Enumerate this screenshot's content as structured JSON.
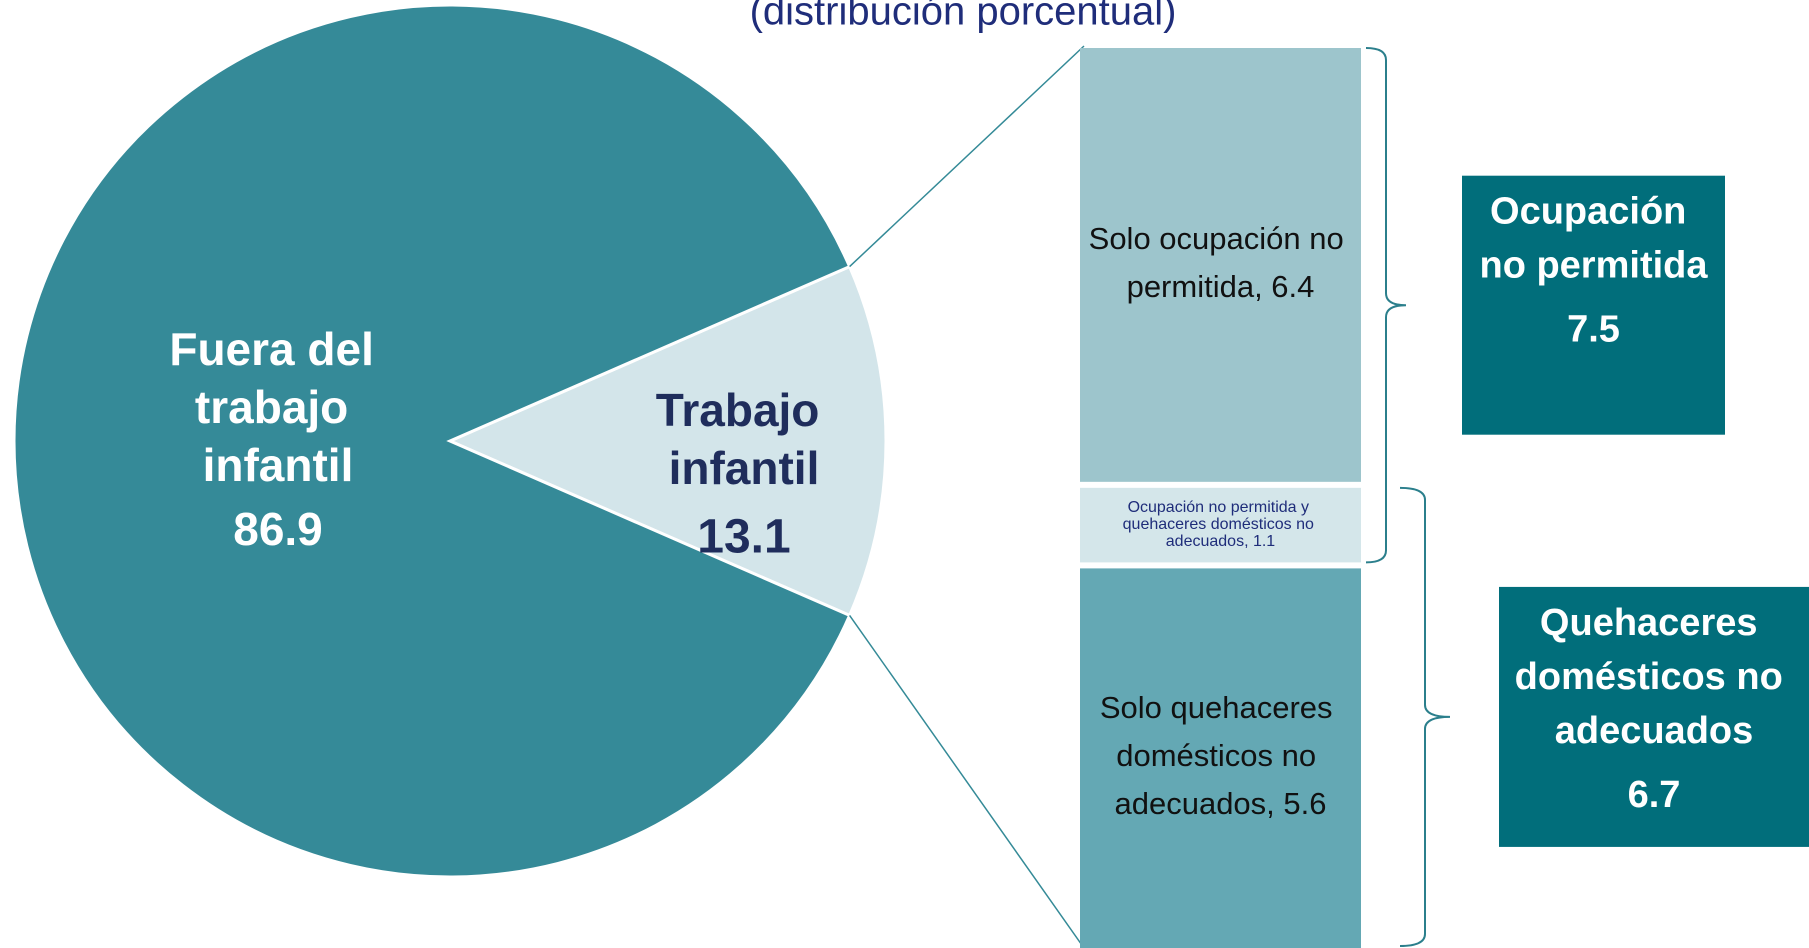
{
  "chart_data": {
    "type": "pie",
    "subtitle": "(distribución porcentual)",
    "categories": [
      "Fuera del trabajo infantil",
      "Trabajo infantil"
    ],
    "values": [
      86.9,
      13.1
    ],
    "colors": [
      "#358a98",
      "#d3e5ea"
    ],
    "breakdown": {
      "categories": [
        "Solo ocupación no permitida",
        "Ocupación no permitida y quehaceres domésticos no adecuados",
        "Solo quehaceres domésticos no adecuados"
      ],
      "values": [
        6.4,
        1.1,
        5.6
      ],
      "value_labels": [
        "Solo ocupación no permitida, 6.4",
        "Ocupación no permitida y quehaceres domésticos no adecuados, 1.1",
        "Solo quehaceres domésticos no adecuados, 5.6"
      ],
      "colors": [
        "#9dc5cc",
        "#d4e6ea",
        "#64a8b4"
      ]
    },
    "groups": [
      {
        "name": "Ocupación no permitida",
        "value": 7.5
      },
      {
        "name": "Quehaceres domésticos no adecuados",
        "value": 6.7
      }
    ],
    "group_color": "#016e7b"
  }
}
